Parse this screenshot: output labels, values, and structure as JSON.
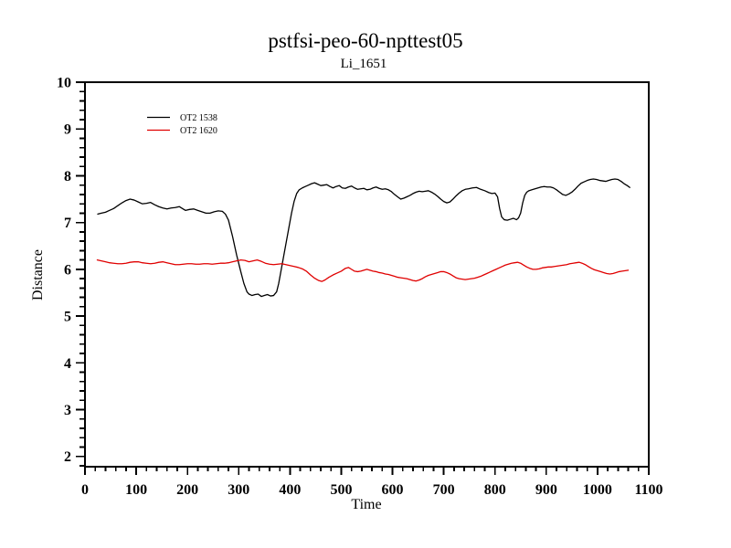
{
  "figure": {
    "background": "#ffffff"
  },
  "chart_data": {
    "type": "line",
    "title": "pstfsi-peo-60-npttest05",
    "subtitle": "Li_1651",
    "xlabel": "Time",
    "ylabel": "Distance",
    "xlim": [
      0,
      1100
    ],
    "ylim": [
      1.78,
      10
    ],
    "xticks": [
      0,
      100,
      200,
      300,
      400,
      500,
      600,
      700,
      800,
      900,
      1000,
      1100
    ],
    "x_minor_step": 20,
    "yticks": [
      2,
      3,
      4,
      5,
      6,
      7,
      8,
      9,
      10
    ],
    "y_minor_step": 0.2,
    "y_minor_start": 1.8,
    "grid": false,
    "frame": "box",
    "axis_color": "#000000",
    "legend_position": "upper-left-inside",
    "series": [
      {
        "name": "OT2 1538",
        "color": "#000000",
        "points": [
          [
            25,
            7.18
          ],
          [
            32,
            7.2
          ],
          [
            40,
            7.22
          ],
          [
            48,
            7.26
          ],
          [
            56,
            7.3
          ],
          [
            64,
            7.36
          ],
          [
            72,
            7.42
          ],
          [
            80,
            7.47
          ],
          [
            88,
            7.5
          ],
          [
            96,
            7.48
          ],
          [
            104,
            7.44
          ],
          [
            112,
            7.4
          ],
          [
            120,
            7.41
          ],
          [
            128,
            7.43
          ],
          [
            136,
            7.38
          ],
          [
            144,
            7.34
          ],
          [
            152,
            7.31
          ],
          [
            160,
            7.29
          ],
          [
            168,
            7.31
          ],
          [
            176,
            7.32
          ],
          [
            184,
            7.34
          ],
          [
            190,
            7.3
          ],
          [
            196,
            7.26
          ],
          [
            204,
            7.28
          ],
          [
            212,
            7.29
          ],
          [
            220,
            7.26
          ],
          [
            228,
            7.23
          ],
          [
            236,
            7.2
          ],
          [
            244,
            7.2
          ],
          [
            252,
            7.23
          ],
          [
            260,
            7.25
          ],
          [
            268,
            7.24
          ],
          [
            274,
            7.18
          ],
          [
            280,
            7.05
          ],
          [
            288,
            6.7
          ],
          [
            296,
            6.3
          ],
          [
            304,
            5.95
          ],
          [
            310,
            5.7
          ],
          [
            316,
            5.52
          ],
          [
            320,
            5.47
          ],
          [
            326,
            5.44
          ],
          [
            332,
            5.46
          ],
          [
            338,
            5.47
          ],
          [
            344,
            5.42
          ],
          [
            350,
            5.44
          ],
          [
            356,
            5.46
          ],
          [
            362,
            5.43
          ],
          [
            368,
            5.44
          ],
          [
            374,
            5.52
          ],
          [
            378,
            5.7
          ],
          [
            383,
            6.0
          ],
          [
            388,
            6.3
          ],
          [
            393,
            6.6
          ],
          [
            398,
            6.9
          ],
          [
            403,
            7.2
          ],
          [
            408,
            7.45
          ],
          [
            413,
            7.62
          ],
          [
            418,
            7.7
          ],
          [
            424,
            7.74
          ],
          [
            430,
            7.77
          ],
          [
            436,
            7.8
          ],
          [
            442,
            7.83
          ],
          [
            448,
            7.85
          ],
          [
            454,
            7.82
          ],
          [
            460,
            7.79
          ],
          [
            466,
            7.8
          ],
          [
            472,
            7.81
          ],
          [
            478,
            7.77
          ],
          [
            484,
            7.74
          ],
          [
            490,
            7.77
          ],
          [
            496,
            7.79
          ],
          [
            502,
            7.74
          ],
          [
            508,
            7.73
          ],
          [
            514,
            7.76
          ],
          [
            520,
            7.78
          ],
          [
            526,
            7.74
          ],
          [
            532,
            7.71
          ],
          [
            538,
            7.72
          ],
          [
            544,
            7.73
          ],
          [
            550,
            7.7
          ],
          [
            556,
            7.71
          ],
          [
            562,
            7.74
          ],
          [
            568,
            7.76
          ],
          [
            574,
            7.73
          ],
          [
            580,
            7.71
          ],
          [
            586,
            7.72
          ],
          [
            592,
            7.7
          ],
          [
            598,
            7.66
          ],
          [
            604,
            7.6
          ],
          [
            610,
            7.55
          ],
          [
            616,
            7.5
          ],
          [
            622,
            7.52
          ],
          [
            628,
            7.55
          ],
          [
            634,
            7.58
          ],
          [
            640,
            7.62
          ],
          [
            646,
            7.65
          ],
          [
            652,
            7.67
          ],
          [
            658,
            7.66
          ],
          [
            664,
            7.67
          ],
          [
            670,
            7.68
          ],
          [
            676,
            7.65
          ],
          [
            682,
            7.61
          ],
          [
            688,
            7.56
          ],
          [
            694,
            7.5
          ],
          [
            700,
            7.45
          ],
          [
            706,
            7.42
          ],
          [
            712,
            7.44
          ],
          [
            718,
            7.5
          ],
          [
            724,
            7.57
          ],
          [
            730,
            7.63
          ],
          [
            736,
            7.68
          ],
          [
            742,
            7.71
          ],
          [
            748,
            7.72
          ],
          [
            756,
            7.74
          ],
          [
            764,
            7.75
          ],
          [
            772,
            7.71
          ],
          [
            780,
            7.68
          ],
          [
            788,
            7.64
          ],
          [
            794,
            7.62
          ],
          [
            800,
            7.63
          ],
          [
            805,
            7.55
          ],
          [
            809,
            7.3
          ],
          [
            813,
            7.12
          ],
          [
            818,
            7.06
          ],
          [
            824,
            7.05
          ],
          [
            830,
            7.07
          ],
          [
            836,
            7.09
          ],
          [
            842,
            7.06
          ],
          [
            846,
            7.1
          ],
          [
            850,
            7.2
          ],
          [
            854,
            7.42
          ],
          [
            858,
            7.58
          ],
          [
            862,
            7.65
          ],
          [
            866,
            7.68
          ],
          [
            872,
            7.7
          ],
          [
            878,
            7.72
          ],
          [
            884,
            7.74
          ],
          [
            890,
            7.76
          ],
          [
            896,
            7.77
          ],
          [
            902,
            7.76
          ],
          [
            908,
            7.76
          ],
          [
            914,
            7.74
          ],
          [
            920,
            7.7
          ],
          [
            926,
            7.65
          ],
          [
            932,
            7.6
          ],
          [
            938,
            7.58
          ],
          [
            944,
            7.61
          ],
          [
            950,
            7.65
          ],
          [
            956,
            7.71
          ],
          [
            962,
            7.78
          ],
          [
            968,
            7.84
          ],
          [
            974,
            7.87
          ],
          [
            980,
            7.9
          ],
          [
            986,
            7.92
          ],
          [
            992,
            7.93
          ],
          [
            998,
            7.92
          ],
          [
            1004,
            7.9
          ],
          [
            1010,
            7.89
          ],
          [
            1016,
            7.88
          ],
          [
            1022,
            7.9
          ],
          [
            1028,
            7.92
          ],
          [
            1034,
            7.93
          ],
          [
            1040,
            7.92
          ],
          [
            1046,
            7.88
          ],
          [
            1052,
            7.83
          ],
          [
            1058,
            7.79
          ],
          [
            1063,
            7.75
          ]
        ]
      },
      {
        "name": "OT2 1620",
        "color": "#e00000",
        "points": [
          [
            24,
            6.2
          ],
          [
            32,
            6.18
          ],
          [
            40,
            6.16
          ],
          [
            48,
            6.14
          ],
          [
            56,
            6.13
          ],
          [
            64,
            6.12
          ],
          [
            72,
            6.12
          ],
          [
            80,
            6.13
          ],
          [
            88,
            6.15
          ],
          [
            96,
            6.16
          ],
          [
            104,
            6.16
          ],
          [
            112,
            6.14
          ],
          [
            120,
            6.13
          ],
          [
            128,
            6.12
          ],
          [
            136,
            6.13
          ],
          [
            144,
            6.15
          ],
          [
            152,
            6.16
          ],
          [
            160,
            6.14
          ],
          [
            168,
            6.12
          ],
          [
            176,
            6.1
          ],
          [
            184,
            6.1
          ],
          [
            192,
            6.11
          ],
          [
            200,
            6.12
          ],
          [
            208,
            6.12
          ],
          [
            216,
            6.11
          ],
          [
            224,
            6.11
          ],
          [
            232,
            6.12
          ],
          [
            240,
            6.12
          ],
          [
            248,
            6.11
          ],
          [
            256,
            6.12
          ],
          [
            264,
            6.13
          ],
          [
            272,
            6.13
          ],
          [
            280,
            6.14
          ],
          [
            288,
            6.16
          ],
          [
            296,
            6.18
          ],
          [
            304,
            6.2
          ],
          [
            312,
            6.19
          ],
          [
            320,
            6.16
          ],
          [
            328,
            6.18
          ],
          [
            336,
            6.2
          ],
          [
            344,
            6.17
          ],
          [
            352,
            6.13
          ],
          [
            360,
            6.11
          ],
          [
            368,
            6.1
          ],
          [
            376,
            6.11
          ],
          [
            384,
            6.12
          ],
          [
            392,
            6.1
          ],
          [
            400,
            6.08
          ],
          [
            408,
            6.06
          ],
          [
            416,
            6.04
          ],
          [
            424,
            6.01
          ],
          [
            432,
            5.96
          ],
          [
            440,
            5.88
          ],
          [
            448,
            5.81
          ],
          [
            456,
            5.76
          ],
          [
            462,
            5.74
          ],
          [
            468,
            5.77
          ],
          [
            476,
            5.83
          ],
          [
            484,
            5.88
          ],
          [
            492,
            5.92
          ],
          [
            500,
            5.96
          ],
          [
            508,
            6.02
          ],
          [
            514,
            6.04
          ],
          [
            520,
            6.0
          ],
          [
            526,
            5.96
          ],
          [
            532,
            5.95
          ],
          [
            538,
            5.96
          ],
          [
            544,
            5.98
          ],
          [
            550,
            6.0
          ],
          [
            556,
            5.98
          ],
          [
            562,
            5.96
          ],
          [
            568,
            5.95
          ],
          [
            574,
            5.93
          ],
          [
            580,
            5.92
          ],
          [
            586,
            5.9
          ],
          [
            592,
            5.89
          ],
          [
            598,
            5.87
          ],
          [
            604,
            5.85
          ],
          [
            610,
            5.83
          ],
          [
            616,
            5.82
          ],
          [
            622,
            5.81
          ],
          [
            628,
            5.8
          ],
          [
            634,
            5.78
          ],
          [
            640,
            5.76
          ],
          [
            646,
            5.75
          ],
          [
            652,
            5.77
          ],
          [
            658,
            5.8
          ],
          [
            664,
            5.84
          ],
          [
            670,
            5.87
          ],
          [
            676,
            5.89
          ],
          [
            682,
            5.91
          ],
          [
            688,
            5.93
          ],
          [
            694,
            5.95
          ],
          [
            700,
            5.95
          ],
          [
            706,
            5.93
          ],
          [
            712,
            5.9
          ],
          [
            718,
            5.86
          ],
          [
            724,
            5.82
          ],
          [
            730,
            5.8
          ],
          [
            736,
            5.79
          ],
          [
            742,
            5.78
          ],
          [
            748,
            5.79
          ],
          [
            754,
            5.8
          ],
          [
            760,
            5.81
          ],
          [
            766,
            5.83
          ],
          [
            772,
            5.85
          ],
          [
            778,
            5.88
          ],
          [
            784,
            5.91
          ],
          [
            790,
            5.94
          ],
          [
            796,
            5.97
          ],
          [
            802,
            6.0
          ],
          [
            808,
            6.03
          ],
          [
            814,
            6.06
          ],
          [
            820,
            6.09
          ],
          [
            826,
            6.11
          ],
          [
            832,
            6.13
          ],
          [
            838,
            6.14
          ],
          [
            844,
            6.15
          ],
          [
            850,
            6.13
          ],
          [
            856,
            6.09
          ],
          [
            862,
            6.05
          ],
          [
            868,
            6.02
          ],
          [
            874,
            6.0
          ],
          [
            880,
            6.0
          ],
          [
            886,
            6.01
          ],
          [
            892,
            6.03
          ],
          [
            898,
            6.04
          ],
          [
            904,
            6.05
          ],
          [
            910,
            6.05
          ],
          [
            916,
            6.06
          ],
          [
            922,
            6.07
          ],
          [
            928,
            6.08
          ],
          [
            934,
            6.09
          ],
          [
            940,
            6.1
          ],
          [
            946,
            6.12
          ],
          [
            952,
            6.13
          ],
          [
            958,
            6.14
          ],
          [
            964,
            6.15
          ],
          [
            970,
            6.13
          ],
          [
            976,
            6.1
          ],
          [
            982,
            6.06
          ],
          [
            988,
            6.02
          ],
          [
            994,
            5.99
          ],
          [
            1000,
            5.97
          ],
          [
            1006,
            5.95
          ],
          [
            1012,
            5.93
          ],
          [
            1018,
            5.91
          ],
          [
            1024,
            5.9
          ],
          [
            1030,
            5.91
          ],
          [
            1036,
            5.93
          ],
          [
            1042,
            5.95
          ],
          [
            1048,
            5.96
          ],
          [
            1054,
            5.97
          ],
          [
            1060,
            5.98
          ]
        ]
      }
    ]
  }
}
